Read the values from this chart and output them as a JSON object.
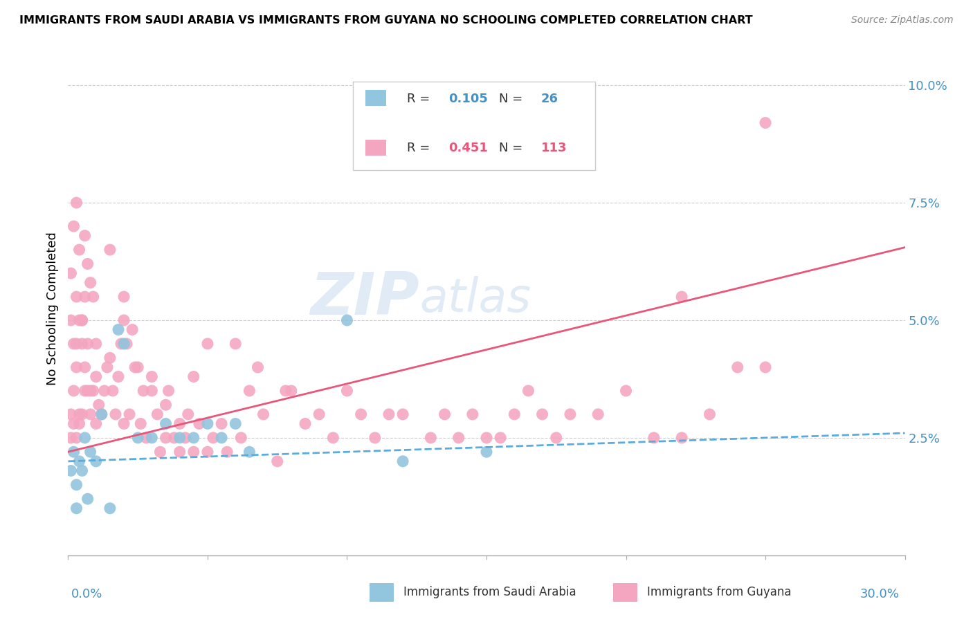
{
  "title": "IMMIGRANTS FROM SAUDI ARABIA VS IMMIGRANTS FROM GUYANA NO SCHOOLING COMPLETED CORRELATION CHART",
  "source": "Source: ZipAtlas.com",
  "ylabel": "No Schooling Completed",
  "xlim": [
    0.0,
    0.3
  ],
  "ylim": [
    0.0,
    0.105
  ],
  "yticks": [
    0.025,
    0.05,
    0.075,
    0.1
  ],
  "ytick_labels": [
    "2.5%",
    "5.0%",
    "7.5%",
    "10.0%"
  ],
  "saudi_color": "#92c5de",
  "guyana_color": "#f4a6c0",
  "saudi_line_color": "#5aabde",
  "guyana_line_color": "#e8567a",
  "saudi_R": 0.105,
  "saudi_N": 26,
  "guyana_R": 0.451,
  "guyana_N": 113,
  "watermark_zip": "ZIP",
  "watermark_atlas": "atlas",
  "saudi_x": [
    0.001,
    0.002,
    0.003,
    0.003,
    0.004,
    0.005,
    0.006,
    0.007,
    0.008,
    0.01,
    0.012,
    0.015,
    0.018,
    0.02,
    0.025,
    0.03,
    0.035,
    0.04,
    0.045,
    0.05,
    0.055,
    0.06,
    0.065,
    0.1,
    0.12,
    0.15
  ],
  "saudi_y": [
    0.018,
    0.022,
    0.015,
    0.01,
    0.02,
    0.018,
    0.025,
    0.012,
    0.022,
    0.02,
    0.03,
    0.01,
    0.048,
    0.045,
    0.025,
    0.025,
    0.028,
    0.025,
    0.025,
    0.028,
    0.025,
    0.028,
    0.022,
    0.05,
    0.02,
    0.022
  ],
  "guyana_x": [
    0.001,
    0.001,
    0.001,
    0.002,
    0.002,
    0.002,
    0.003,
    0.003,
    0.003,
    0.003,
    0.004,
    0.004,
    0.004,
    0.005,
    0.005,
    0.005,
    0.006,
    0.006,
    0.006,
    0.007,
    0.007,
    0.008,
    0.008,
    0.009,
    0.01,
    0.01,
    0.011,
    0.012,
    0.013,
    0.014,
    0.015,
    0.016,
    0.017,
    0.018,
    0.019,
    0.02,
    0.02,
    0.021,
    0.022,
    0.023,
    0.024,
    0.025,
    0.026,
    0.027,
    0.028,
    0.03,
    0.03,
    0.032,
    0.033,
    0.035,
    0.035,
    0.036,
    0.038,
    0.04,
    0.04,
    0.042,
    0.043,
    0.045,
    0.045,
    0.047,
    0.05,
    0.05,
    0.052,
    0.055,
    0.057,
    0.06,
    0.062,
    0.065,
    0.068,
    0.07,
    0.075,
    0.078,
    0.08,
    0.085,
    0.09,
    0.095,
    0.1,
    0.105,
    0.11,
    0.115,
    0.12,
    0.13,
    0.135,
    0.14,
    0.145,
    0.15,
    0.155,
    0.16,
    0.165,
    0.17,
    0.175,
    0.18,
    0.19,
    0.2,
    0.21,
    0.22,
    0.23,
    0.24,
    0.25,
    0.001,
    0.002,
    0.003,
    0.004,
    0.005,
    0.006,
    0.007,
    0.008,
    0.009,
    0.01,
    0.015,
    0.02,
    0.25,
    0.22
  ],
  "guyana_y": [
    0.025,
    0.03,
    0.05,
    0.035,
    0.028,
    0.045,
    0.04,
    0.025,
    0.055,
    0.045,
    0.03,
    0.028,
    0.05,
    0.05,
    0.045,
    0.03,
    0.055,
    0.04,
    0.035,
    0.035,
    0.045,
    0.03,
    0.035,
    0.035,
    0.028,
    0.038,
    0.032,
    0.03,
    0.035,
    0.04,
    0.042,
    0.035,
    0.03,
    0.038,
    0.045,
    0.05,
    0.028,
    0.045,
    0.03,
    0.048,
    0.04,
    0.04,
    0.028,
    0.035,
    0.025,
    0.038,
    0.035,
    0.03,
    0.022,
    0.025,
    0.032,
    0.035,
    0.025,
    0.028,
    0.022,
    0.025,
    0.03,
    0.022,
    0.038,
    0.028,
    0.022,
    0.045,
    0.025,
    0.028,
    0.022,
    0.045,
    0.025,
    0.035,
    0.04,
    0.03,
    0.02,
    0.035,
    0.035,
    0.028,
    0.03,
    0.025,
    0.035,
    0.03,
    0.025,
    0.03,
    0.03,
    0.025,
    0.03,
    0.025,
    0.03,
    0.025,
    0.025,
    0.03,
    0.035,
    0.03,
    0.025,
    0.03,
    0.03,
    0.035,
    0.025,
    0.025,
    0.03,
    0.04,
    0.04,
    0.06,
    0.07,
    0.075,
    0.065,
    0.05,
    0.068,
    0.062,
    0.058,
    0.055,
    0.045,
    0.065,
    0.055,
    0.092,
    0.055
  ]
}
